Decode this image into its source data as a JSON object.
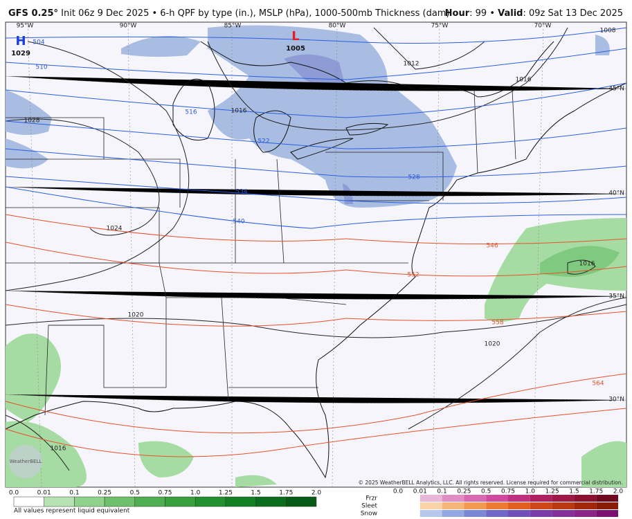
{
  "header": {
    "model": "GFS 0.25°",
    "run": "Init 06z 9 Dec 2025 • 6-h QPF by type (in.), MSLP (hPa), 1000-500mb Thickness (dam)",
    "hour_label": "Hour",
    "hour": ": 99 •",
    "valid_label": "Valid",
    "valid": ": 09z Sat 13 Dec 2025"
  },
  "map": {
    "longitudes": [
      "95°W",
      "90°W",
      "85°W",
      "80°W",
      "75°W",
      "70°W"
    ],
    "latitudes": [
      "45°N",
      "40°N",
      "35°N",
      "30°N"
    ],
    "high": {
      "symbol": "H",
      "pressure": "1029"
    },
    "low": {
      "symbol": "L",
      "pressure": "1005"
    },
    "isobar_labels": [
      "1028",
      "1024",
      "1020",
      "1016",
      "1012",
      "1008",
      "1016",
      "1020",
      "1016",
      "1016"
    ],
    "thickness_labels": [
      "504",
      "510",
      "516",
      "522",
      "528",
      "534",
      "540",
      "546",
      "552",
      "558",
      "564"
    ],
    "copyright": "© 2025 WeatherBELL Analytics, LLC. All rights reserved. License required for commercial distribution.",
    "logo": "WeatherBELL"
  },
  "legend": {
    "rain_ticks": [
      "0.0",
      "0.01",
      "0.1",
      "0.25",
      "0.5",
      "0.75",
      "1.0",
      "1.25",
      "1.5",
      "1.75",
      "2.0"
    ],
    "note": "All values represent liquid equivalent",
    "types": [
      "Frzr",
      "Sleet",
      "Snow"
    ],
    "mixed_ticks": [
      "0.0",
      "0.01",
      "0.1",
      "0.25",
      "0.5",
      "0.75",
      "1.0",
      "1.25",
      "1.5",
      "1.75",
      "2.0"
    ]
  }
}
